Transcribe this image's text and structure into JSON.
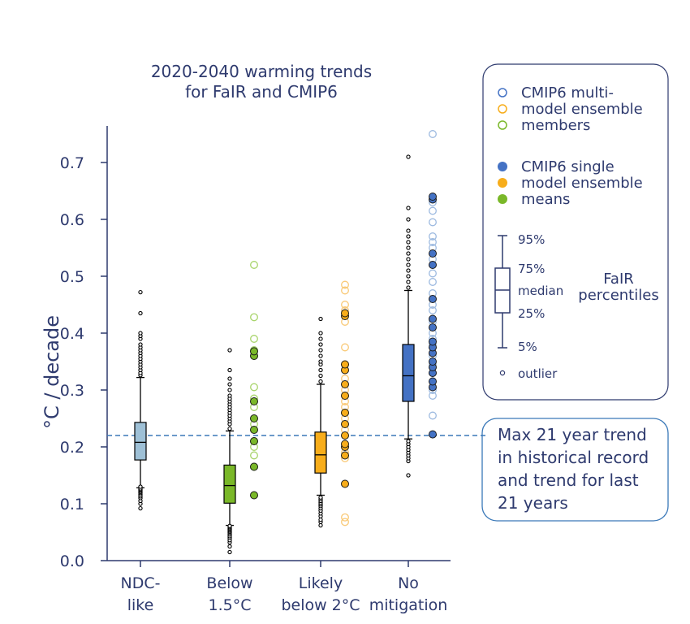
{
  "chart_data": {
    "type": "box",
    "title_lines": [
      "2020-2040 warming trends",
      "for FaIR and CMIP6"
    ],
    "ylabel": "°C / decade",
    "ylim": [
      0,
      0.76
    ],
    "yticks": [
      "0.0",
      "0.1",
      "0.2",
      "0.3",
      "0.4",
      "0.5",
      "0.6",
      "0.7"
    ],
    "reference_line": 0.22,
    "categories": [
      {
        "key": "ndc",
        "lines": [
          "NDC-",
          "like"
        ],
        "color": "#9ec0d6",
        "lightColor": "#9ec0d6",
        "box": {
          "p5": 0.128,
          "p25": 0.177,
          "median": 0.208,
          "p75": 0.243,
          "p95": 0.322
        },
        "outliers": [
          0.092,
          0.1,
          0.105,
          0.11,
          0.113,
          0.116,
          0.119,
          0.121,
          0.123,
          0.125,
          0.127,
          0.13,
          0.326,
          0.33,
          0.335,
          0.34,
          0.345,
          0.35,
          0.355,
          0.36,
          0.365,
          0.37,
          0.375,
          0.38,
          0.39,
          0.395,
          0.4,
          0.435,
          0.472
        ],
        "members": [],
        "means": []
      },
      {
        "key": "below15",
        "lines": [
          "Below",
          "1.5°C"
        ],
        "color": "#7ab829",
        "lightColor": "#a8d46b",
        "box": {
          "p5": 0.062,
          "p25": 0.101,
          "median": 0.132,
          "p75": 0.168,
          "p95": 0.228
        },
        "outliers": [
          0.015,
          0.025,
          0.032,
          0.036,
          0.04,
          0.043,
          0.046,
          0.049,
          0.051,
          0.053,
          0.055,
          0.057,
          0.059,
          0.061,
          0.232,
          0.24,
          0.245,
          0.25,
          0.255,
          0.26,
          0.265,
          0.27,
          0.275,
          0.28,
          0.285,
          0.29,
          0.3,
          0.31,
          0.32,
          0.335,
          0.37
        ],
        "members": [
          0.165,
          0.185,
          0.2,
          0.21,
          0.24,
          0.27,
          0.285,
          0.305,
          0.36,
          0.37,
          0.39,
          0.428,
          0.52
        ],
        "means": [
          0.115,
          0.165,
          0.21,
          0.23,
          0.25,
          0.28,
          0.36,
          0.368
        ]
      },
      {
        "key": "likely2",
        "lines": [
          "Likely",
          "below 2°C"
        ],
        "color": "#f7ad1b",
        "lightColor": "#f9c977",
        "box": {
          "p5": 0.115,
          "p25": 0.154,
          "median": 0.186,
          "p75": 0.226,
          "p95": 0.31
        },
        "outliers": [
          0.062,
          0.068,
          0.072,
          0.078,
          0.083,
          0.088,
          0.092,
          0.096,
          0.099,
          0.102,
          0.105,
          0.108,
          0.111,
          0.315,
          0.325,
          0.335,
          0.345,
          0.35,
          0.36,
          0.37,
          0.38,
          0.39,
          0.4,
          0.425
        ],
        "members": [
          0.068,
          0.076,
          0.18,
          0.19,
          0.2,
          0.23,
          0.25,
          0.26,
          0.27,
          0.28,
          0.29,
          0.3,
          0.32,
          0.345,
          0.375,
          0.42,
          0.44,
          0.45,
          0.475,
          0.485
        ],
        "means": [
          0.135,
          0.185,
          0.2,
          0.205,
          0.22,
          0.24,
          0.26,
          0.29,
          0.31,
          0.335,
          0.345,
          0.43,
          0.435
        ]
      },
      {
        "key": "nomit",
        "lines": [
          "No",
          "mitigation"
        ],
        "color": "#4472c4",
        "lightColor": "#9dbae0",
        "box": {
          "p5": 0.214,
          "p25": 0.28,
          "median": 0.325,
          "p75": 0.38,
          "p95": 0.475
        },
        "outliers": [
          0.15,
          0.175,
          0.18,
          0.185,
          0.19,
          0.195,
          0.2,
          0.205,
          0.21,
          0.48,
          0.49,
          0.5,
          0.51,
          0.52,
          0.53,
          0.54,
          0.55,
          0.56,
          0.57,
          0.58,
          0.6,
          0.62,
          0.71
        ],
        "members": [
          0.255,
          0.29,
          0.3,
          0.33,
          0.345,
          0.36,
          0.38,
          0.39,
          0.4,
          0.42,
          0.44,
          0.45,
          0.47,
          0.49,
          0.505,
          0.53,
          0.55,
          0.56,
          0.57,
          0.595,
          0.615,
          0.63,
          0.75
        ],
        "means": [
          0.222,
          0.305,
          0.315,
          0.33,
          0.34,
          0.35,
          0.365,
          0.375,
          0.385,
          0.41,
          0.425,
          0.46,
          0.52,
          0.54,
          0.635,
          0.64
        ]
      }
    ],
    "legend": {
      "members_lines": [
        "CMIP6 multi-",
        "model ensemble",
        "members"
      ],
      "means_lines": [
        "CMIP6 single",
        "model ensemble",
        "means"
      ],
      "percentiles": [
        "95%",
        "75%",
        "median",
        "25%",
        "5%"
      ],
      "fair_lines": [
        "FaIR",
        "percentiles"
      ],
      "outlier": "outlier",
      "placement": "top-right"
    },
    "annotation_lines": [
      "Max 21 year trend",
      "in historical record",
      "and trend for last",
      "21 years"
    ]
  }
}
